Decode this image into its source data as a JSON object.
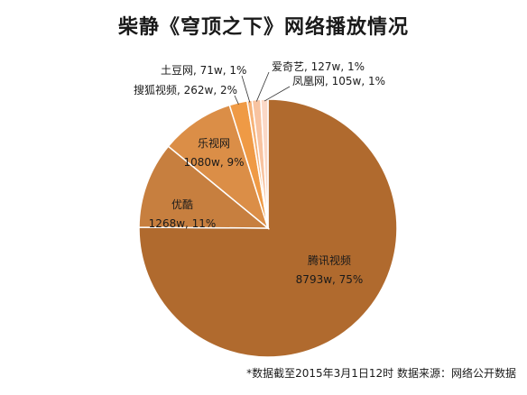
{
  "chart_data": {
    "type": "pie",
    "title": "柴静《穹顶之下》网络播放情况",
    "slices": [
      {
        "name": "腾讯视频",
        "value_label": "8793w",
        "value": 8793,
        "percent": "75%",
        "color": "#b06a2e"
      },
      {
        "name": "优酷",
        "value_label": "1268w",
        "value": 1268,
        "percent": "11%",
        "color": "#c77f3f"
      },
      {
        "name": "乐视网",
        "value_label": "1080w",
        "value": 1080,
        "percent": "9%",
        "color": "#db8e47"
      },
      {
        "name": "搜狐视频",
        "value_label": "262w",
        "value": 262,
        "percent": "2%",
        "color": "#ef9a45"
      },
      {
        "name": "土豆网",
        "value_label": "71w",
        "value": 71,
        "percent": "1%",
        "color": "#f6b277"
      },
      {
        "name": "爱奇艺",
        "value_label": "127w",
        "value": 127,
        "percent": "1%",
        "color": "#f8c3a0"
      },
      {
        "name": "凤凰网",
        "value_label": "105w",
        "value": 105,
        "percent": "1%",
        "color": "#fbd8c6"
      }
    ]
  },
  "footnote": "*数据截至2015年3月1日12时    数据来源：网络公开数据"
}
